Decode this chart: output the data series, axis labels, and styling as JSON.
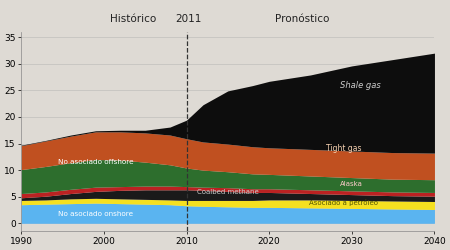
{
  "years": [
    1990,
    1993,
    1996,
    1999,
    2002,
    2005,
    2008,
    2010,
    2012,
    2015,
    2018,
    2020,
    2025,
    2030,
    2035,
    2040
  ],
  "no_asociado_onshore": [
    3.5,
    3.6,
    3.7,
    3.8,
    3.7,
    3.6,
    3.5,
    3.3,
    3.2,
    3.1,
    3.0,
    3.0,
    2.9,
    2.8,
    2.7,
    2.6
  ],
  "asociado_petroleo": [
    0.8,
    0.8,
    0.9,
    0.9,
    0.9,
    0.9,
    0.9,
    1.0,
    1.1,
    1.2,
    1.3,
    1.4,
    1.5,
    1.5,
    1.5,
    1.5
  ],
  "coalbed_methane": [
    0.5,
    0.7,
    1.0,
    1.3,
    1.6,
    1.8,
    1.9,
    2.0,
    1.9,
    1.7,
    1.5,
    1.4,
    1.2,
    1.1,
    1.0,
    1.0
  ],
  "alaska": [
    0.8,
    0.8,
    0.8,
    0.8,
    0.7,
    0.7,
    0.7,
    0.6,
    0.6,
    0.7,
    0.7,
    0.7,
    0.7,
    0.7,
    0.7,
    0.7
  ],
  "no_asociado_offshore": [
    4.5,
    4.8,
    5.0,
    5.2,
    5.0,
    4.5,
    4.0,
    3.5,
    3.2,
    3.0,
    2.8,
    2.7,
    2.6,
    2.5,
    2.4,
    2.4
  ],
  "tight_gas": [
    4.5,
    4.8,
    5.0,
    5.2,
    5.3,
    5.5,
    5.6,
    5.5,
    5.3,
    5.2,
    5.1,
    5.0,
    5.0,
    5.0,
    5.0,
    5.0
  ],
  "shale_gas": [
    0.1,
    0.1,
    0.2,
    0.2,
    0.3,
    0.5,
    1.5,
    3.5,
    7.0,
    10.0,
    11.5,
    12.5,
    14.0,
    16.0,
    17.5,
    18.8
  ],
  "colors": {
    "no_asociado_onshore": "#5ab4f0",
    "asociado_petroleo": "#f5e020",
    "coalbed_methane": "#1a1a1a",
    "alaska": "#bb2222",
    "no_asociado_offshore": "#2d6e2d",
    "tight_gas": "#c05020",
    "shale_gas": "#0d0d0d"
  },
  "labels": {
    "no_asociado_onshore": "No asociado onshore",
    "asociado_petroleo": "Asociado a petróleo",
    "coalbed_methane": "Coalbed methane",
    "alaska": "Alaska",
    "no_asociado_offshore": "No asociado offshore",
    "tight_gas": "Tight gas",
    "shale_gas": "Shale gas"
  },
  "xlim": [
    1990,
    2040
  ],
  "ylim": [
    -1.5,
    36
  ],
  "xticks": [
    1990,
    2000,
    2010,
    2020,
    2030,
    2040
  ],
  "yticks": [
    0,
    5,
    10,
    15,
    20,
    25,
    30,
    35
  ],
  "historico_label": "Histórico",
  "pronostico_label": "Pronóstico",
  "year_label": "2011",
  "dashed_x": 2010,
  "background_color": "#dedad4"
}
